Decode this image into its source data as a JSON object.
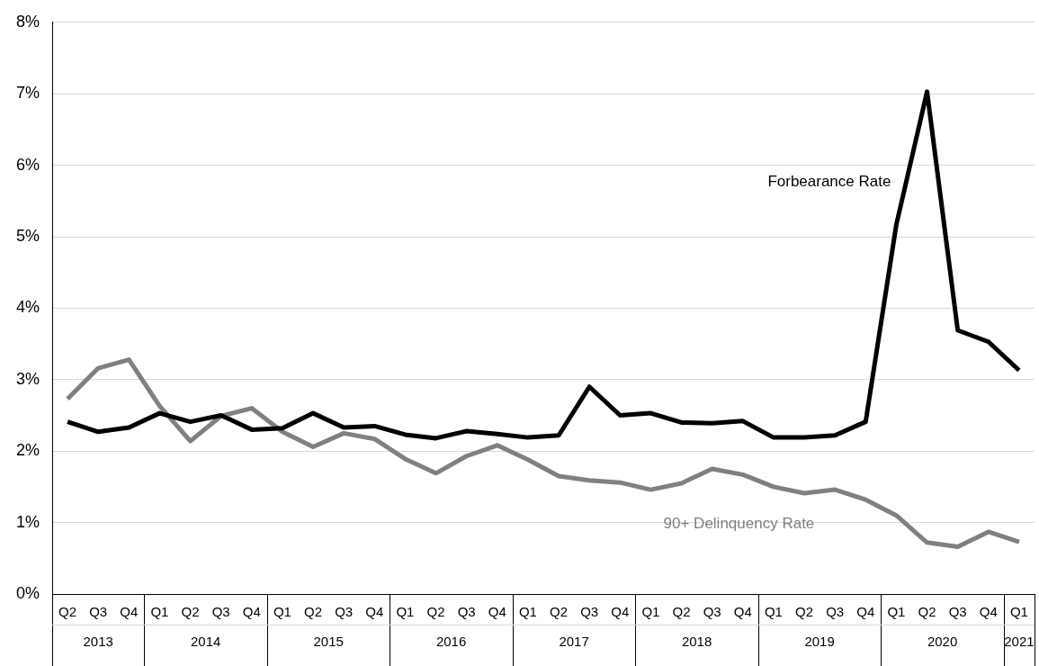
{
  "chart_data": {
    "type": "line",
    "categories": [
      "Q2",
      "Q3",
      "Q4",
      "Q1",
      "Q2",
      "Q3",
      "Q4",
      "Q1",
      "Q2",
      "Q3",
      "Q4",
      "Q1",
      "Q2",
      "Q3",
      "Q4",
      "Q1",
      "Q2",
      "Q3",
      "Q4",
      "Q1",
      "Q2",
      "Q3",
      "Q4",
      "Q1",
      "Q2",
      "Q3",
      "Q4",
      "Q1",
      "Q2",
      "Q3",
      "Q4",
      "Q1"
    ],
    "series": [
      {
        "name": "Forbearance Rate",
        "color": "#000000",
        "values": [
          2.41,
          2.27,
          2.33,
          2.53,
          2.41,
          2.5,
          2.3,
          2.32,
          2.53,
          2.33,
          2.35,
          2.23,
          2.18,
          2.28,
          2.24,
          2.19,
          2.22,
          2.9,
          2.5,
          2.53,
          2.4,
          2.39,
          2.42,
          2.19,
          2.19,
          2.22,
          2.41,
          5.17,
          7.03,
          3.69,
          3.53,
          3.13
        ]
      },
      {
        "name": "90+ Delinquency Rate",
        "color": "#808080",
        "values": [
          2.73,
          3.16,
          3.28,
          2.63,
          2.14,
          2.49,
          2.6,
          2.27,
          2.06,
          2.25,
          2.17,
          1.89,
          1.69,
          1.93,
          2.08,
          1.88,
          1.65,
          1.59,
          1.56,
          1.46,
          1.55,
          1.75,
          1.67,
          1.5,
          1.41,
          1.46,
          1.32,
          1.1,
          0.72,
          0.66,
          0.87,
          0.73
        ]
      }
    ],
    "annotations": [
      "2013",
      "2014",
      "2015",
      "2016",
      "2017",
      "2018",
      "2019",
      "2020",
      "2021"
    ],
    "ylim": [
      0,
      8
    ],
    "yticks": [
      {
        "value": 0,
        "label": "0%"
      },
      {
        "value": 1,
        "label": "1%"
      },
      {
        "value": 2,
        "label": "2%"
      },
      {
        "value": 3,
        "label": "3%"
      },
      {
        "value": 4,
        "label": "4%"
      },
      {
        "value": 5,
        "label": "5%"
      },
      {
        "value": 6,
        "label": "6%"
      },
      {
        "value": 7,
        "label": "7%"
      },
      {
        "value": 8,
        "label": "8%"
      }
    ],
    "grid": "y",
    "legend": false,
    "marker": "none",
    "line_style": "solid"
  }
}
